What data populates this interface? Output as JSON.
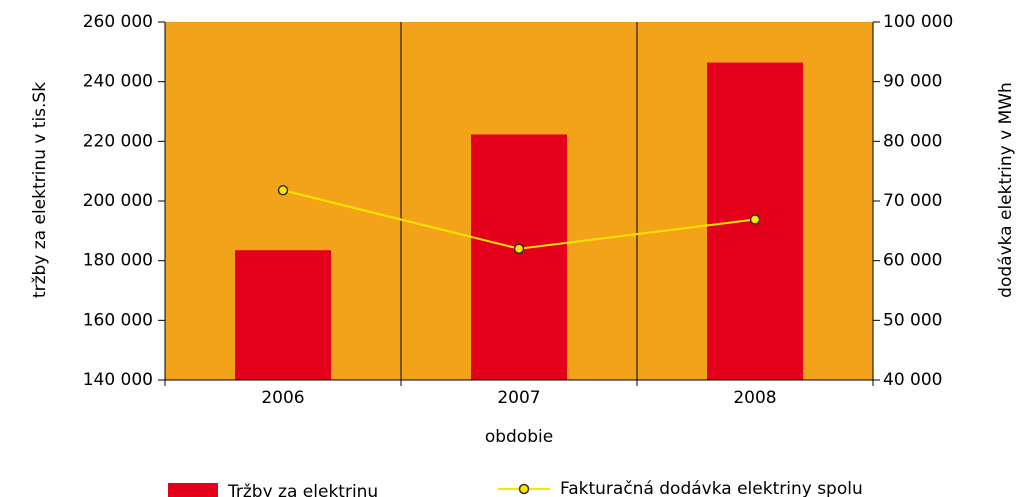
{
  "chart_data": {
    "type": "bar_line",
    "x_label": "obdobie",
    "y_label": "tržby za elektrinu v tis.Sk",
    "y2_label": "dodávka elektriny v MWh",
    "categories": [
      "2006",
      "2007",
      "2008"
    ],
    "series": [
      {
        "name": "Tržby za elektrinu",
        "type": "bar",
        "color": "#e2001a",
        "values": [
          183500,
          222300,
          246400
        ]
      },
      {
        "name": "Fakturačná dodávka elektriny spolu",
        "type": "line",
        "axis": "y2",
        "color": "#ffe400",
        "values": [
          71800,
          62000,
          66900
        ]
      }
    ],
    "background": "#f2a31a",
    "ylim": [
      140000,
      260000
    ],
    "yticks": [
      {
        "value": 140000,
        "label": "140 000"
      },
      {
        "value": 160000,
        "label": "160 000"
      },
      {
        "value": 180000,
        "label": "180 000"
      },
      {
        "value": 200000,
        "label": "200 000"
      },
      {
        "value": 220000,
        "label": "220 000"
      },
      {
        "value": 240000,
        "label": "240 000"
      },
      {
        "value": 260000,
        "label": "260 000"
      }
    ],
    "y2lim": [
      40000,
      100000
    ],
    "y2ticks": [
      {
        "value": 40000,
        "label": "40 000"
      },
      {
        "value": 50000,
        "label": "50 000"
      },
      {
        "value": 60000,
        "label": "60 000"
      },
      {
        "value": 70000,
        "label": "70 000"
      },
      {
        "value": 80000,
        "label": "80 000"
      },
      {
        "value": 90000,
        "label": "90 000"
      },
      {
        "value": 100000,
        "label": "100 000"
      }
    ],
    "legend": "bottom"
  }
}
